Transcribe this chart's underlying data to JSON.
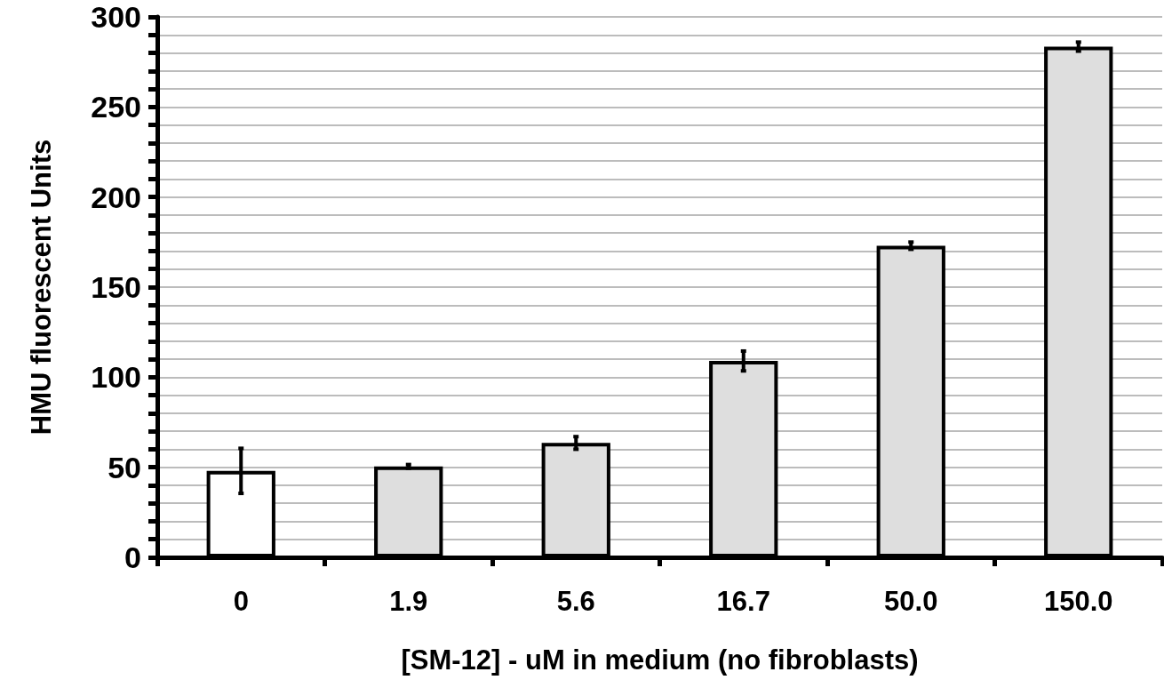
{
  "chart_data": {
    "type": "bar",
    "xlabel": "[SM-12] - uM in medium (no fibroblasts)",
    "ylabel": "HMU fluorescent Units",
    "categories": [
      "0",
      "1.9",
      "5.6",
      "16.7",
      "50.0",
      "150.0"
    ],
    "values": [
      48,
      50.5,
      63.5,
      109,
      173,
      283.5
    ],
    "errors": [
      12.5,
      1,
      3.5,
      5.5,
      2,
      2.5
    ],
    "colors": [
      "#ffffff",
      "#dedede",
      "#dedede",
      "#dedede",
      "#dedede",
      "#dedede"
    ],
    "ylim": [
      0,
      300
    ],
    "yticks": [
      0,
      {
        "value": 10,
        "label": null
      },
      {
        "value": 20,
        "label": null
      },
      {
        "value": 30,
        "label": null
      },
      {
        "value": 40,
        "label": null
      },
      50,
      {
        "value": 60,
        "label": null
      },
      {
        "value": 70,
        "label": null
      },
      {
        "value": 80,
        "label": null
      },
      {
        "value": 90,
        "label": null
      },
      100,
      {
        "value": 110,
        "label": null
      },
      {
        "value": 120,
        "label": null
      },
      {
        "value": 130,
        "label": null
      },
      {
        "value": 140,
        "label": null
      },
      150,
      {
        "value": 160,
        "label": null
      },
      {
        "value": 170,
        "label": null
      },
      {
        "value": 180,
        "label": null
      },
      {
        "value": 190,
        "label": null
      },
      200,
      {
        "value": 210,
        "label": null
      },
      {
        "value": 220,
        "label": null
      },
      {
        "value": 230,
        "label": null
      },
      {
        "value": 240,
        "label": null
      },
      250,
      {
        "value": 260,
        "label": null
      },
      {
        "value": 270,
        "label": null
      },
      {
        "value": 280,
        "label": null
      },
      {
        "value": 290,
        "label": null
      },
      300
    ],
    "grid": "y"
  }
}
